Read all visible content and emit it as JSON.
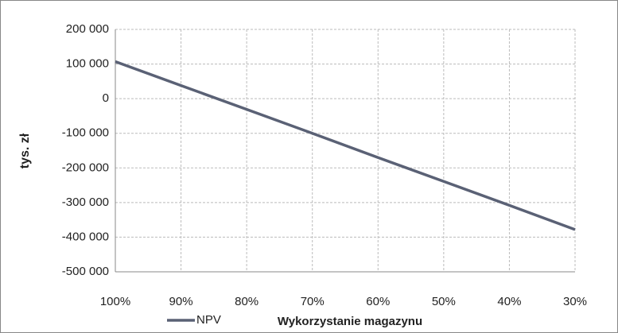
{
  "chart_data": {
    "type": "line",
    "y_label": "tys. zł",
    "x_label": "Wykorzystanie magazynu",
    "categories": [
      "100%",
      "90%",
      "80%",
      "70%",
      "60%",
      "50%",
      "40%",
      "30%"
    ],
    "series": [
      {
        "name": "NPV",
        "color": "#5a6175",
        "values": [
          107000,
          38000,
          -31000,
          -100000,
          -170000,
          -239000,
          -308000,
          -378000
        ]
      }
    ],
    "ylim": [
      -500000,
      200000
    ],
    "yticks": [
      {
        "value": -500000,
        "label": "-500 000"
      },
      {
        "value": -400000,
        "label": "-400 000"
      },
      {
        "value": -300000,
        "label": "-300 000"
      },
      {
        "value": -200000,
        "label": "-200 000"
      },
      {
        "value": -100000,
        "label": "-100 000"
      },
      0,
      {
        "value": 100000,
        "label": "100 000"
      },
      {
        "value": 200000,
        "label": "200 000"
      }
    ],
    "grid": true,
    "legend": "bottom"
  }
}
